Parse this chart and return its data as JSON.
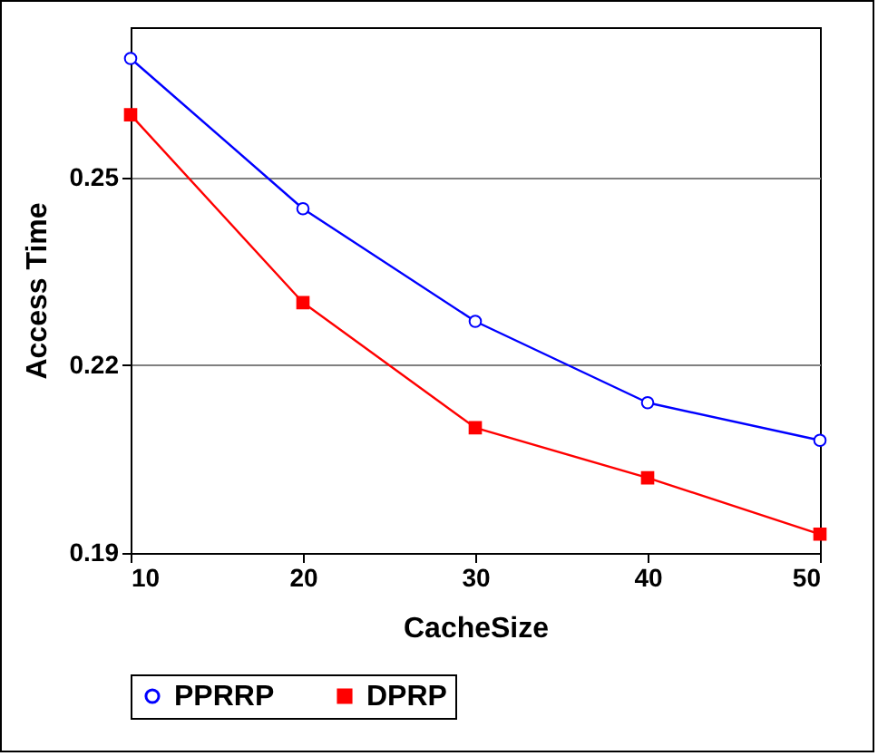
{
  "chart_data": {
    "type": "line",
    "xlabel": "CacheSize",
    "ylabel": "Access Time",
    "x": [
      10,
      20,
      30,
      40,
      50
    ],
    "series": [
      {
        "name": "PPRRP",
        "color": "#0000ff",
        "marker": "circle",
        "values": [
          0.269,
          0.245,
          0.227,
          0.214,
          0.208
        ]
      },
      {
        "name": "DPRP",
        "color": "#ff0000",
        "marker": "square",
        "values": [
          0.26,
          0.23,
          0.21,
          0.202,
          0.193
        ]
      }
    ],
    "xlim": [
      10,
      50
    ],
    "xticks": [
      10,
      20,
      30,
      40,
      50
    ],
    "ylim": [
      0.19,
      0.274
    ],
    "yticks": [
      0.19,
      0.22,
      0.25
    ],
    "grid": "y",
    "legend": "bottom",
    "line_style": "solid"
  }
}
